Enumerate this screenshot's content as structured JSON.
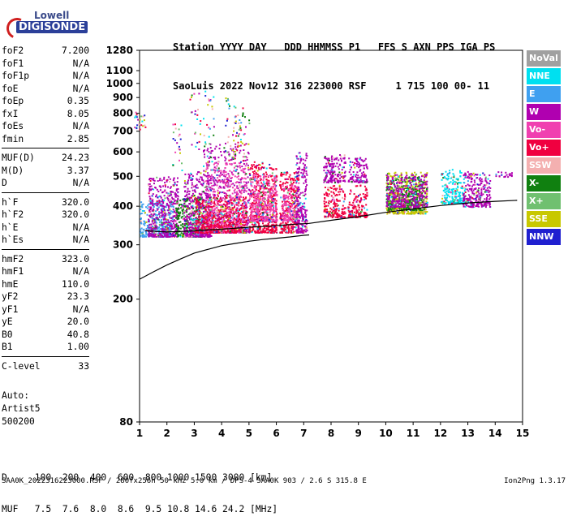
{
  "logo": {
    "top": "Lowell",
    "bottom": "DIGISONDE"
  },
  "header": {
    "line1": "Station YYYY DAY   DDD HHMMSS P1   FFS S AXN PPS IGA PS",
    "line2": "SaoLuis 2022 Nov12 316 223000 RSF     1 715 100 00- 11"
  },
  "params": [
    {
      "k": "foF2",
      "v": "7.200"
    },
    {
      "k": "foF1",
      "v": "N/A"
    },
    {
      "k": "foF1p",
      "v": "N/A"
    },
    {
      "k": "foE",
      "v": "N/A"
    },
    {
      "k": "foEp",
      "v": "0.35"
    },
    {
      "k": "fxI",
      "v": "8.05"
    },
    {
      "k": "foEs",
      "v": "N/A"
    },
    {
      "k": "fmin",
      "v": "2.85"
    },
    {
      "k": "MUF(D)",
      "v": "24.23"
    },
    {
      "k": "M(D)",
      "v": "3.37"
    },
    {
      "k": "D",
      "v": "N/A"
    },
    {
      "k": "h`F",
      "v": "320.0"
    },
    {
      "k": "h`F2",
      "v": "320.0"
    },
    {
      "k": "h`E",
      "v": "N/A"
    },
    {
      "k": "h`Es",
      "v": "N/A"
    },
    {
      "k": "hmF2",
      "v": "323.0"
    },
    {
      "k": "hmF1",
      "v": "N/A"
    },
    {
      "k": "hmE",
      "v": "110.0"
    },
    {
      "k": "yF2",
      "v": "23.3"
    },
    {
      "k": "yF1",
      "v": "N/A"
    },
    {
      "k": "yE",
      "v": "20.0"
    },
    {
      "k": "B0",
      "v": "40.8"
    },
    {
      "k": "B1",
      "v": "1.00"
    },
    {
      "k": "C-level",
      "v": "33"
    }
  ],
  "left_footer": {
    "line1": "Auto:",
    "line2": "Artist5",
    "line3": "500200"
  },
  "bottom_table": {
    "d_row": "D     100  200  400  600  800 1000 1500 3000 [km]",
    "muf_row": "MUF   7.5  7.6  8.0  8.6  9.5 10.8 14.6 24.2 [MHz]"
  },
  "footer": {
    "left": "SAA0K_2022316223000.RSF / 280fx256h 50 kHz 5.0 km / DPS-4 SAA0K 903 / 2.6 S 315.8 E",
    "right": "Ion2Png 1.3.17"
  },
  "legend": [
    {
      "label": "NoVal",
      "color": "#a0a0a0"
    },
    {
      "label": "NNE",
      "color": "#00e0f0"
    },
    {
      "label": "E",
      "color": "#3fa0f0"
    },
    {
      "label": "W",
      "color": "#b000b0"
    },
    {
      "label": "Vo-",
      "color": "#f040b0"
    },
    {
      "label": "Vo+",
      "color": "#f00040"
    },
    {
      "label": "SSW",
      "color": "#f4b0b0"
    },
    {
      "label": "X-",
      "color": "#108010"
    },
    {
      "label": "X+",
      "color": "#70c070"
    },
    {
      "label": "SSE",
      "color": "#c8c800"
    },
    {
      "label": "NNW",
      "color": "#2020d0"
    }
  ],
  "chart_data": {
    "type": "scatter",
    "xlabel": "",
    "ylabel": "",
    "xlim": [
      1,
      15
    ],
    "ylim": [
      80,
      1280
    ],
    "x_ticks": [
      "1",
      "2",
      "3",
      "4",
      "5",
      "6",
      "7",
      "8",
      "9",
      "10",
      "11",
      "12",
      "13",
      "14",
      "15"
    ],
    "y_ticks": [
      "80",
      "200",
      "300",
      "400",
      "500",
      "600",
      "700",
      "800",
      "900",
      "1000",
      "1100",
      "1280"
    ],
    "y_log_scale": true,
    "grid": false,
    "legend_placement": "right",
    "clusters": [
      {
        "x": [
          1.0,
          2.2
        ],
        "y": [
          320,
          420
        ],
        "color": "#3fa0f0"
      },
      {
        "x": [
          1.3,
          2.4
        ],
        "y": [
          320,
          500
        ],
        "color": "#b000b0"
      },
      {
        "x": [
          2.3,
          3.3
        ],
        "y": [
          320,
          430
        ],
        "color": "#108010"
      },
      {
        "x": [
          2.6,
          3.6
        ],
        "y": [
          320,
          520
        ],
        "color": "#b000b0"
      },
      {
        "x": [
          3.3,
          5.0
        ],
        "y": [
          330,
          650
        ],
        "color": "#b000b0"
      },
      {
        "x": [
          3.4,
          4.9
        ],
        "y": [
          330,
          560
        ],
        "color": "#f040b0"
      },
      {
        "x": [
          3.0,
          4.9
        ],
        "y": [
          330,
          430
        ],
        "color": "#f00040"
      },
      {
        "x": [
          5.0,
          6.0
        ],
        "y": [
          330,
          560
        ],
        "color": "#f00040"
      },
      {
        "x": [
          5.0,
          6.0
        ],
        "y": [
          360,
          510
        ],
        "color": "#f040b0"
      },
      {
        "x": [
          6.1,
          6.8
        ],
        "y": [
          330,
          520
        ],
        "color": "#f00040"
      },
      {
        "x": [
          6.2,
          6.8
        ],
        "y": [
          360,
          470
        ],
        "color": "#f040b0"
      },
      {
        "x": [
          6.7,
          7.1
        ],
        "y": [
          330,
          600
        ],
        "color": "#b000b0"
      },
      {
        "x": [
          7.7,
          8.5
        ],
        "y": [
          370,
          470
        ],
        "color": "#f00040"
      },
      {
        "x": [
          7.7,
          8.5
        ],
        "y": [
          480,
          590
        ],
        "color": "#b000b0"
      },
      {
        "x": [
          8.6,
          9.3
        ],
        "y": [
          370,
          470
        ],
        "color": "#f00040"
      },
      {
        "x": [
          8.6,
          9.3
        ],
        "y": [
          480,
          580
        ],
        "color": "#b000b0"
      },
      {
        "x": [
          10.0,
          11.5
        ],
        "y": [
          380,
          520
        ],
        "color": "#c8c800"
      },
      {
        "x": [
          10.0,
          11.4
        ],
        "y": [
          390,
          500
        ],
        "color": "#108010"
      },
      {
        "x": [
          10.0,
          11.5
        ],
        "y": [
          400,
          510
        ],
        "color": "#b000b0"
      },
      {
        "x": [
          12.0,
          12.9
        ],
        "y": [
          410,
          530
        ],
        "color": "#00e0f0"
      },
      {
        "x": [
          12.8,
          13.8
        ],
        "y": [
          400,
          520
        ],
        "color": "#b000b0"
      },
      {
        "x": [
          14.0,
          14.6
        ],
        "y": [
          500,
          520
        ],
        "color": "#b000b0"
      }
    ],
    "sparse_spikes": [
      {
        "x": 3.0,
        "y": [
          600,
          940
        ]
      },
      {
        "x": 3.5,
        "y": [
          560,
          960
        ]
      },
      {
        "x": 4.3,
        "y": [
          560,
          920
        ]
      },
      {
        "x": 4.6,
        "y": [
          560,
          900
        ]
      },
      {
        "x": 4.8,
        "y": [
          560,
          800
        ]
      },
      {
        "x": 2.4,
        "y": [
          520,
          750
        ]
      },
      {
        "x": 1.0,
        "y": [
          700,
          810
        ]
      }
    ],
    "profile_curve": {
      "x": [
        1.0,
        1.5,
        2.0,
        2.5,
        3.0,
        3.5,
        4.0,
        4.5,
        5.0,
        5.5,
        6.0,
        6.5,
        7.0,
        7.2
      ],
      "y": [
        232,
        245,
        258,
        270,
        282,
        290,
        298,
        303,
        308,
        312,
        315,
        318,
        322,
        323
      ]
    },
    "trace_curve": {
      "x": [
        1.2,
        2.0,
        2.8,
        3.5,
        4.2,
        5.0,
        5.8,
        6.5,
        7.2,
        8.0,
        9.0,
        10.0,
        11.0,
        12.0,
        13.0,
        14.0,
        14.8
      ],
      "y": [
        333,
        330,
        332,
        335,
        338,
        342,
        345,
        349,
        352,
        360,
        370,
        382,
        392,
        402,
        410,
        415,
        418
      ]
    }
  }
}
